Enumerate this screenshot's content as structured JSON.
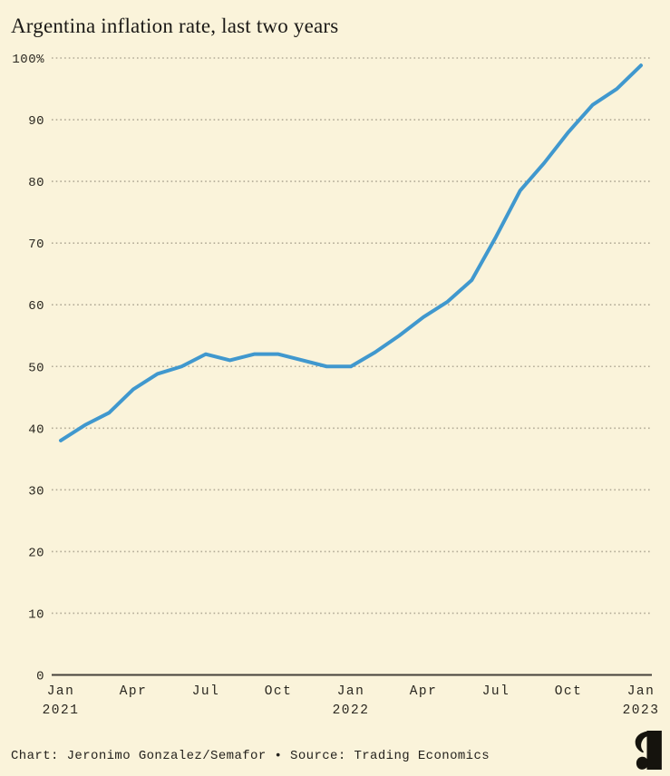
{
  "page": {
    "title": "Argentina inflation rate, last two years"
  },
  "footer": {
    "credit": "Chart: Jeronimo Gonzalez/Semafor • Source: Trading Economics"
  },
  "branding": {
    "logo": "semafor-logo-mark"
  },
  "colors": {
    "background": "#faf3da",
    "line": "#4098ce",
    "grid": "#b2ab97",
    "axis": "#45413a",
    "text": "#2a2720",
    "title_text": "#1b1916",
    "logo": "#15130d"
  },
  "chart_data": {
    "type": "line",
    "title": "Argentina inflation rate, last two years",
    "unit": "percent (year-over-year inflation rate)",
    "x": [
      "Jan 2021",
      "Feb 2021",
      "Mar 2021",
      "Apr 2021",
      "May 2021",
      "Jun 2021",
      "Jul 2021",
      "Aug 2021",
      "Sep 2021",
      "Oct 2021",
      "Nov 2021",
      "Dec 2021",
      "Jan 2022",
      "Feb 2022",
      "Mar 2022",
      "Apr 2022",
      "May 2022",
      "Jun 2022",
      "Jul 2022",
      "Aug 2022",
      "Sep 2022",
      "Oct 2022",
      "Nov 2022",
      "Dec 2022",
      "Jan 2023"
    ],
    "series": [
      {
        "name": "Argentina inflation rate",
        "values": [
          38,
          40.5,
          42.5,
          46.3,
          48.8,
          50,
          52,
          51,
          52,
          52,
          51,
          50,
          50,
          52.3,
          55,
          58,
          60.5,
          64,
          71,
          78.5,
          83,
          88,
          92.4,
          95,
          98.8
        ]
      }
    ],
    "ylim": [
      0,
      100
    ],
    "ytick_interval": 10,
    "grid": "horizontal-dotted",
    "legend": "none",
    "yticks": [
      {
        "v": 100,
        "label": "100%"
      },
      {
        "v": 90,
        "label": "90"
      },
      {
        "v": 80,
        "label": "80"
      },
      {
        "v": 70,
        "label": "70"
      },
      {
        "v": 60,
        "label": "60"
      },
      {
        "v": 50,
        "label": "50"
      },
      {
        "v": 40,
        "label": "40"
      },
      {
        "v": 30,
        "label": "30"
      },
      {
        "v": 20,
        "label": "20"
      },
      {
        "v": 10,
        "label": "10"
      },
      {
        "v": 0,
        "label": "0"
      }
    ],
    "xticks": [
      {
        "i": 0,
        "label": "Jan",
        "year": "2021"
      },
      {
        "i": 3,
        "label": "Apr"
      },
      {
        "i": 6,
        "label": "Jul"
      },
      {
        "i": 9,
        "label": "Oct"
      },
      {
        "i": 12,
        "label": "Jan",
        "year": "2022"
      },
      {
        "i": 15,
        "label": "Apr"
      },
      {
        "i": 18,
        "label": "Jul"
      },
      {
        "i": 21,
        "label": "Oct"
      },
      {
        "i": 24,
        "label": "Jan",
        "year": "2023"
      }
    ]
  }
}
